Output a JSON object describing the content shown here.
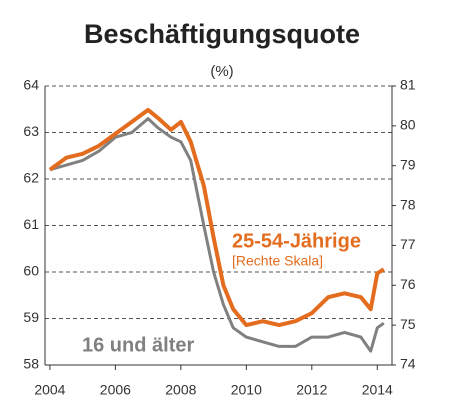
{
  "chart_data": {
    "type": "line",
    "title": "Beschäftigungsquote",
    "subtitle": "(%)",
    "annotation": "[Rechte Skala]",
    "x": [
      2004,
      2004.5,
      2005,
      2005.5,
      2006,
      2006.5,
      2007,
      2007.3,
      2007.7,
      2008,
      2008.3,
      2008.7,
      2009,
      2009.3,
      2009.6,
      2010,
      2010.5,
      2011,
      2011.5,
      2012,
      2012.5,
      2013,
      2013.5,
      2013.8,
      2014,
      2014.2
    ],
    "series": [
      {
        "name": "16 und älter",
        "color": "#808080",
        "axis": "y",
        "values": [
          62.2,
          62.3,
          62.4,
          62.6,
          62.9,
          63.0,
          63.3,
          63.1,
          62.9,
          62.8,
          62.4,
          61.0,
          60.0,
          59.3,
          58.8,
          58.6,
          58.5,
          58.4,
          58.4,
          58.6,
          58.6,
          58.7,
          58.6,
          58.3,
          58.8,
          58.9
        ]
      },
      {
        "name": "25-54-Jährige",
        "color": "#e46c1e",
        "axis": "y2",
        "values": [
          78.9,
          79.2,
          79.3,
          79.5,
          79.8,
          80.1,
          80.4,
          80.2,
          79.9,
          80.1,
          79.6,
          78.5,
          77.2,
          76.0,
          75.4,
          75.0,
          75.1,
          75.0,
          75.1,
          75.3,
          75.7,
          75.8,
          75.7,
          75.4,
          76.3,
          76.4
        ]
      }
    ],
    "xlim": [
      2003.85,
      2014.45
    ],
    "xticks": [
      2004,
      2006,
      2008,
      2010,
      2012,
      2014
    ],
    "ylim": [
      58,
      64
    ],
    "yticks": [
      58,
      59,
      60,
      61,
      62,
      63,
      64
    ],
    "y2lim": [
      74,
      81
    ],
    "y2ticks": [
      74,
      75,
      76,
      77,
      78,
      79,
      80,
      81
    ],
    "grid": true
  }
}
